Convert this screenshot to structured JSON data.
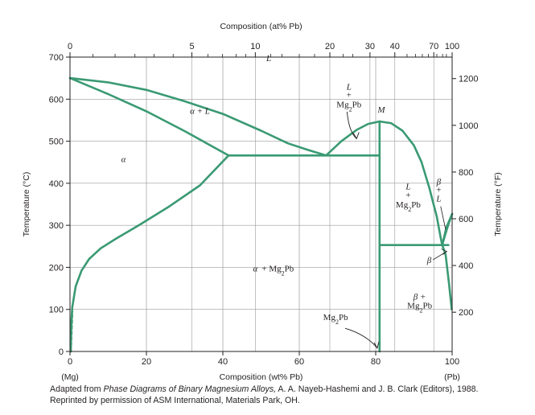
{
  "chart_data": {
    "type": "phase-diagram",
    "title_top": "Composition (at% Pb)",
    "xlabel": "Composition (wt% Pb)",
    "ylabel_left": "Temperature (°C)",
    "ylabel_right": "Temperature (°F)",
    "x_endpoint_left": "(Mg)",
    "x_endpoint_right": "(Pb)",
    "xlim": [
      0,
      100
    ],
    "ylim": [
      0,
      700
    ],
    "x_ticks": [
      0,
      20,
      40,
      60,
      80,
      100
    ],
    "y_ticks": [
      0,
      100,
      200,
      300,
      400,
      500,
      600,
      700
    ],
    "at_ticks_labeled": [
      {
        "label": "0",
        "wt": 0
      },
      {
        "label": "5",
        "wt": 31.9
      },
      {
        "label": "10",
        "wt": 48.5
      },
      {
        "label": "20",
        "wt": 68.0
      },
      {
        "label": "30",
        "wt": 78.5
      },
      {
        "label": "40",
        "wt": 85.0
      },
      {
        "label": "70",
        "wt": 95.2
      },
      {
        "label": "100",
        "wt": 100
      }
    ],
    "at_minor_ticks_wt": [
      6.0,
      11.8,
      17.0,
      22.0,
      27.0,
      36.1,
      39.9,
      43.5,
      46.0,
      52.5,
      55.5,
      60.0,
      64.0,
      71.5,
      74.0,
      88.2,
      90.4,
      92.2,
      93.8,
      96.0,
      97.5,
      98.5
    ],
    "f_ticks": [
      200,
      400,
      600,
      800,
      1000,
      1200
    ],
    "lines": [
      {
        "name": "liquidus-mg",
        "points": [
          [
            0,
            650
          ],
          [
            10,
            640
          ],
          [
            20,
            622
          ],
          [
            30,
            595
          ],
          [
            40,
            565
          ],
          [
            50,
            525
          ],
          [
            57,
            495
          ],
          [
            62,
            480
          ],
          [
            67,
            466
          ]
        ]
      },
      {
        "name": "alpha-liquidus-solidus",
        "points": [
          [
            0,
            650
          ],
          [
            10,
            612
          ],
          [
            20,
            571
          ],
          [
            30,
            524
          ],
          [
            41.5,
            466
          ]
        ]
      },
      {
        "name": "alpha-solvus",
        "points": [
          [
            0.2,
            0
          ],
          [
            0.3,
            60
          ],
          [
            0.6,
            105
          ],
          [
            1.5,
            155
          ],
          [
            3,
            192
          ],
          [
            5,
            220
          ],
          [
            8,
            245
          ],
          [
            12,
            268
          ],
          [
            18,
            300
          ],
          [
            26,
            345
          ],
          [
            34,
            395
          ],
          [
            41.5,
            466
          ]
        ]
      },
      {
        "name": "eutectic-isotherm-1",
        "points": [
          [
            41.5,
            466
          ],
          [
            81,
            466
          ]
        ]
      },
      {
        "name": "liquidus-mg2pb-left",
        "points": [
          [
            67,
            466
          ],
          [
            71,
            500
          ],
          [
            75,
            527
          ],
          [
            78,
            541
          ],
          [
            81,
            547
          ]
        ]
      },
      {
        "name": "liquidus-mg2pb-right",
        "points": [
          [
            81,
            547
          ],
          [
            84,
            543
          ],
          [
            87,
            525
          ],
          [
            90,
            490
          ],
          [
            92,
            450
          ],
          [
            94,
            390
          ],
          [
            96,
            320
          ],
          [
            97,
            270
          ],
          [
            97.4,
            253
          ]
        ]
      },
      {
        "name": "eutectic-isotherm-2",
        "points": [
          [
            81,
            253
          ],
          [
            99,
            253
          ]
        ]
      },
      {
        "name": "mg2pb-compound",
        "points": [
          [
            81,
            0
          ],
          [
            81,
            547
          ]
        ]
      },
      {
        "name": "liquidus-pb",
        "points": [
          [
            97.4,
            253
          ],
          [
            98.5,
            295
          ],
          [
            100,
            327
          ]
        ]
      },
      {
        "name": "beta-solidus",
        "points": [
          [
            97.4,
            253
          ],
          [
            98,
            272
          ],
          [
            99,
            302
          ],
          [
            100,
            327
          ]
        ]
      },
      {
        "name": "beta-solvus",
        "points": [
          [
            97.4,
            253
          ],
          [
            98.3,
            230
          ],
          [
            99.2,
            160
          ],
          [
            99.9,
            100
          ]
        ]
      }
    ],
    "dashed_segment": {
      "name": "alpha-solvus-low",
      "points": [
        [
          0.2,
          0
        ],
        [
          0.6,
          95
        ]
      ]
    },
    "regions": [
      {
        "label": "L",
        "x": 52,
        "y": 690
      },
      {
        "label": "α + L",
        "x": 34,
        "y": 565
      },
      {
        "label": "α",
        "x": 14,
        "y": 450
      },
      {
        "label": "α + Mg2Pb",
        "x": 54,
        "y": 190
      },
      {
        "label": "β + Mg2Pb",
        "x": 91.5,
        "y": 105
      }
    ],
    "annotations": {
      "L_mg2pb_left": {
        "line1": "L",
        "line2": "+",
        "line3": "Mg2Pb"
      },
      "L_mg2pb_right": {
        "line1": "L",
        "line2": "+",
        "line3": "Mg2Pb"
      },
      "M": "M",
      "beta_L": {
        "line1": "β",
        "line2": "+",
        "line3": "L"
      },
      "beta": "β",
      "mg2pb": "Mg2Pb",
      "alpha_plus_mg2pb": {
        "alpha": "α",
        "rest": "+ Mg2Pb"
      },
      "beta_plus_mg2pb": {
        "line1": "β +",
        "line2": "Mg2Pb"
      }
    }
  },
  "caption": {
    "prefix": "Adapted from ",
    "title_italic": "Phase Diagrams of Binary Magnesium Alloys,",
    "suffix": " A. A. Nayeb-Hashemi and J. B. Clark (Editors), 1988.",
    "line2": "Reprinted by permission of ASM International, Materials Park, OH."
  },
  "colors": {
    "line": "#3a9a73",
    "axis": "#231f20",
    "grid": "#9a9a9a",
    "arrow": "#231f20"
  }
}
